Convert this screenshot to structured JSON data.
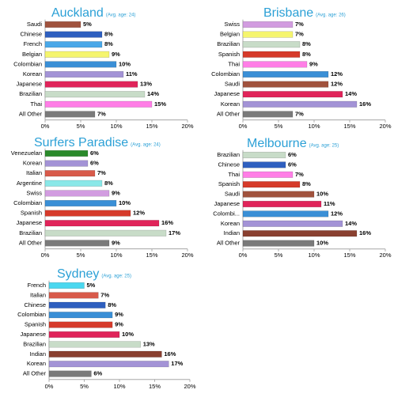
{
  "chart_data": [
    {
      "type": "bar",
      "title": "Auckland",
      "subtitle": "(Avg. age: 24)",
      "categories": [
        "Saudi",
        "Chinese",
        "French",
        "Belgian",
        "Colombian",
        "Korean",
        "Japanese",
        "Brazilian",
        "Thai",
        "All Other"
      ],
      "values": [
        5,
        8,
        8,
        9,
        10,
        11,
        13,
        14,
        15,
        7
      ],
      "value_labels": [
        "5%",
        "8%",
        "8%",
        "9%",
        "10%",
        "11%",
        "13%",
        "14%",
        "15%",
        "7%"
      ],
      "colors": [
        "#a0523d",
        "#2e5fbf",
        "#4aa8e8",
        "#f5f56e",
        "#3a8fd6",
        "#a393d6",
        "#e0245a",
        "#c8dcc8",
        "#ff7ee6",
        "#7a7a7a"
      ],
      "xlim": [
        0,
        20
      ],
      "xticks": [
        {
          "value": 0,
          "label": "0%"
        },
        {
          "value": 5,
          "label": "5%"
        },
        {
          "value": 10,
          "label": "10%"
        },
        {
          "value": 15,
          "label": "15%"
        },
        {
          "value": 20,
          "label": "20%"
        }
      ]
    },
    {
      "type": "bar",
      "title": "Brisbane",
      "subtitle": "(Avg. age: 26)",
      "categories": [
        "Swiss",
        "Belgian",
        "Brazilian",
        "Spanish",
        "Thai",
        "Colombian",
        "Saudi",
        "Japanese",
        "Korean",
        "All Other"
      ],
      "values": [
        7,
        7,
        8,
        8,
        9,
        12,
        12,
        14,
        16,
        7
      ],
      "value_labels": [
        "7%",
        "7%",
        "8%",
        "8%",
        "9%",
        "12%",
        "12%",
        "14%",
        "16%",
        "7%"
      ],
      "colors": [
        "#d29ce0",
        "#f5f56e",
        "#c8dcc8",
        "#d63a2a",
        "#ff7ee6",
        "#3a8fd6",
        "#a0523d",
        "#e0245a",
        "#a393d6",
        "#7a7a7a"
      ],
      "xlim": [
        0,
        20
      ],
      "xticks": [
        {
          "value": 0,
          "label": "0%"
        },
        {
          "value": 5,
          "label": "5%"
        },
        {
          "value": 10,
          "label": "10%"
        },
        {
          "value": 15,
          "label": "15%"
        },
        {
          "value": 20,
          "label": "20%"
        }
      ]
    },
    {
      "type": "bar",
      "title": "Surfers Paradise",
      "subtitle": "(Avg. age: 24)",
      "categories": [
        "Venezuelan",
        "Korean",
        "Italian",
        "Argentine",
        "Swiss",
        "Colombian",
        "Spanish",
        "Japanese",
        "Brazilian",
        "All Other"
      ],
      "values": [
        6,
        6,
        7,
        8,
        9,
        10,
        12,
        16,
        17,
        9
      ],
      "value_labels": [
        "6%",
        "6%",
        "7%",
        "8%",
        "9%",
        "10%",
        "12%",
        "16%",
        "17%",
        "9%"
      ],
      "colors": [
        "#2a8a2a",
        "#a393d6",
        "#d85a4a",
        "#8ae8e8",
        "#d29ce0",
        "#3a8fd6",
        "#d63a2a",
        "#e0245a",
        "#c8dcc8",
        "#7a7a7a"
      ],
      "xlim": [
        0,
        20
      ],
      "xticks": [
        {
          "value": 0,
          "label": "0%"
        },
        {
          "value": 5,
          "label": "5%"
        },
        {
          "value": 10,
          "label": "10%"
        },
        {
          "value": 15,
          "label": "15%"
        },
        {
          "value": 20,
          "label": "20%"
        }
      ]
    },
    {
      "type": "bar",
      "title": "Melbourne",
      "subtitle": "(Avg. age: 25)",
      "categories": [
        "Brazilian",
        "Chinese",
        "Thai",
        "Spanish",
        "Saudi",
        "Japanese",
        "Colombi...",
        "Korean",
        "Indian",
        "All Other"
      ],
      "values": [
        6,
        6,
        7,
        8,
        10,
        11,
        12,
        14,
        16,
        10
      ],
      "value_labels": [
        "6%",
        "6%",
        "7%",
        "8%",
        "10%",
        "11%",
        "12%",
        "14%",
        "16%",
        "10%"
      ],
      "colors": [
        "#c8dcc8",
        "#2e5fbf",
        "#ff7ee6",
        "#d63a2a",
        "#a0523d",
        "#e0245a",
        "#3a8fd6",
        "#a393d6",
        "#8a4030",
        "#7a7a7a"
      ],
      "xlim": [
        0,
        20
      ],
      "xticks": [
        {
          "value": 0,
          "label": "0%"
        },
        {
          "value": 5,
          "label": "5%"
        },
        {
          "value": 10,
          "label": "10%"
        },
        {
          "value": 15,
          "label": "15%"
        },
        {
          "value": 20,
          "label": "20%"
        }
      ]
    },
    {
      "type": "bar",
      "title": "Sydney",
      "subtitle": "(Avg. age: 25)",
      "categories": [
        "French",
        "Italian",
        "Chinese",
        "Colombian",
        "Spanish",
        "Japanese",
        "Brazilian",
        "Indian",
        "Korean",
        "All Other"
      ],
      "values": [
        5,
        7,
        8,
        9,
        9,
        10,
        13,
        16,
        17,
        6
      ],
      "value_labels": [
        "5%",
        "7%",
        "8%",
        "9%",
        "9%",
        "10%",
        "13%",
        "16%",
        "17%",
        "6%"
      ],
      "colors": [
        "#4ad8f0",
        "#d85a4a",
        "#2e5fbf",
        "#3a8fd6",
        "#d63a2a",
        "#e0245a",
        "#c8dcc8",
        "#8a4030",
        "#a393d6",
        "#7a7a7a"
      ],
      "xlim": [
        0,
        20
      ],
      "xticks": [
        {
          "value": 0,
          "label": "0%"
        },
        {
          "value": 5,
          "label": "5%"
        },
        {
          "value": 10,
          "label": "10%"
        },
        {
          "value": 15,
          "label": "15%"
        },
        {
          "value": 20,
          "label": "20%"
        }
      ]
    }
  ]
}
